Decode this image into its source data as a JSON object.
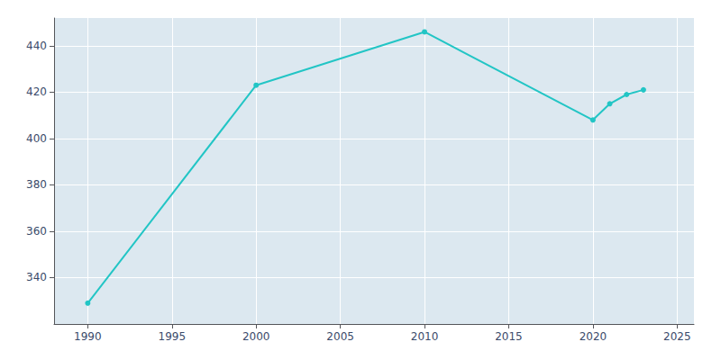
{
  "chart_data": {
    "type": "line",
    "x": [
      1990,
      2000,
      2010,
      2020,
      2021,
      2022,
      2023
    ],
    "values": [
      329,
      423,
      446,
      408,
      415,
      419,
      421
    ],
    "color": "#22c5c5",
    "marker": "circle",
    "xlim": [
      1988,
      2026
    ],
    "xticks": [
      1990,
      1995,
      2000,
      2005,
      2010,
      2015,
      2020,
      2025
    ],
    "ylim": [
      320,
      452
    ],
    "yticks": [
      340,
      360,
      380,
      400,
      420,
      440
    ],
    "grid": true
  }
}
